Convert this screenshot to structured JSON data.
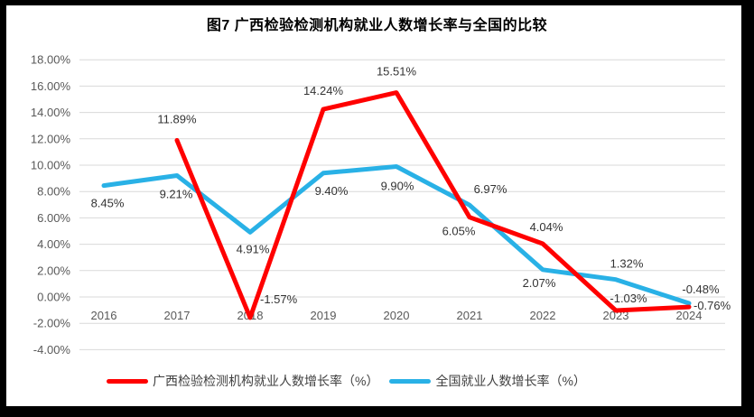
{
  "title": "图7 广西检验检测机构就业人数增长率与全国的比较",
  "frame": {
    "border_color": "#000000",
    "background": "#ffffff"
  },
  "chart_data": {
    "type": "line",
    "title": "图7 广西检验检测机构就业人数增长率与全国的比较",
    "categories": [
      "2016",
      "2017",
      "2018",
      "2019",
      "2020",
      "2021",
      "2022",
      "2023",
      "2024"
    ],
    "series": [
      {
        "name": "广西检验检测机构就业人数增长率（%）",
        "color": "#FF0000",
        "values": [
          null,
          11.89,
          -1.57,
          14.24,
          15.51,
          6.05,
          4.04,
          -1.03,
          -0.76
        ],
        "labels": [
          "",
          "11.89%",
          "-1.57%",
          "14.24%",
          "15.51%",
          "6.05%",
          "4.04%",
          "-1.03%",
          "-0.76%"
        ]
      },
      {
        "name": "全国就业人数增长率（%）",
        "color": "#29B1E6",
        "values": [
          8.45,
          9.21,
          4.91,
          9.4,
          9.9,
          6.97,
          2.07,
          1.32,
          -0.48
        ],
        "labels": [
          "8.45%",
          "9.21%",
          "4.91%",
          "9.40%",
          "9.90%",
          "6.97%",
          "2.07%",
          "1.32%",
          "-0.48%"
        ]
      }
    ],
    "y_axis": {
      "min": -4,
      "max": 18,
      "step": 2,
      "tick_labels": [
        "18.00%",
        "16.00%",
        "14.00%",
        "12.00%",
        "10.00%",
        "8.00%",
        "6.00%",
        "4.00%",
        "2.00%",
        "0.00%",
        "-2.00%",
        "-4.00%"
      ]
    },
    "grid": "horizontal",
    "legend_position": "bottom",
    "colors": {
      "gridline": "#D9D9D9",
      "axis_text": "#595959",
      "label_text": "#333333"
    }
  }
}
